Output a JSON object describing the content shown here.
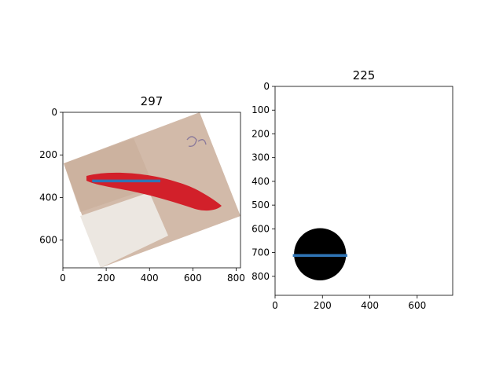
{
  "colors": {
    "line": "#2f74b5",
    "frame": "#000000",
    "skin_light": "#d8c1b4",
    "skin_dark": "#a08677",
    "wound": "#d2202a",
    "cloth": "#ece7e1",
    "blob": "#000000"
  },
  "chart_data": [
    {
      "type": "image",
      "title": "297",
      "image_content": "photo of a red wound on skin, rotated",
      "xlim": [
        0,
        820
      ],
      "ylim": [
        730,
        0
      ],
      "xticks": [
        0,
        200,
        400,
        600,
        800
      ],
      "yticks": [
        0,
        200,
        400,
        600
      ],
      "xtick_labels": [
        "0",
        "200",
        "400",
        "600",
        "800"
      ],
      "ytick_labels": [
        "0",
        "200",
        "400",
        "600"
      ],
      "segment": {
        "x": [
          135,
          450
        ],
        "y": [
          322,
          322
        ]
      }
    },
    {
      "type": "image",
      "title": "225",
      "image_content": "black filled circle on white background",
      "xlim": [
        0,
        750
      ],
      "ylim": [
        880,
        0
      ],
      "xticks": [
        0,
        200,
        400,
        600
      ],
      "yticks": [
        0,
        100,
        200,
        300,
        400,
        500,
        600,
        700,
        800
      ],
      "xtick_labels": [
        "0",
        "200",
        "400",
        "600"
      ],
      "ytick_labels": [
        "0",
        "100",
        "200",
        "300",
        "400",
        "500",
        "600",
        "700",
        "800"
      ],
      "circle": {
        "cx": 190,
        "cy": 707,
        "r": 110
      },
      "segment": {
        "x": [
          75,
          305
        ],
        "y": [
          712,
          712
        ]
      }
    }
  ]
}
